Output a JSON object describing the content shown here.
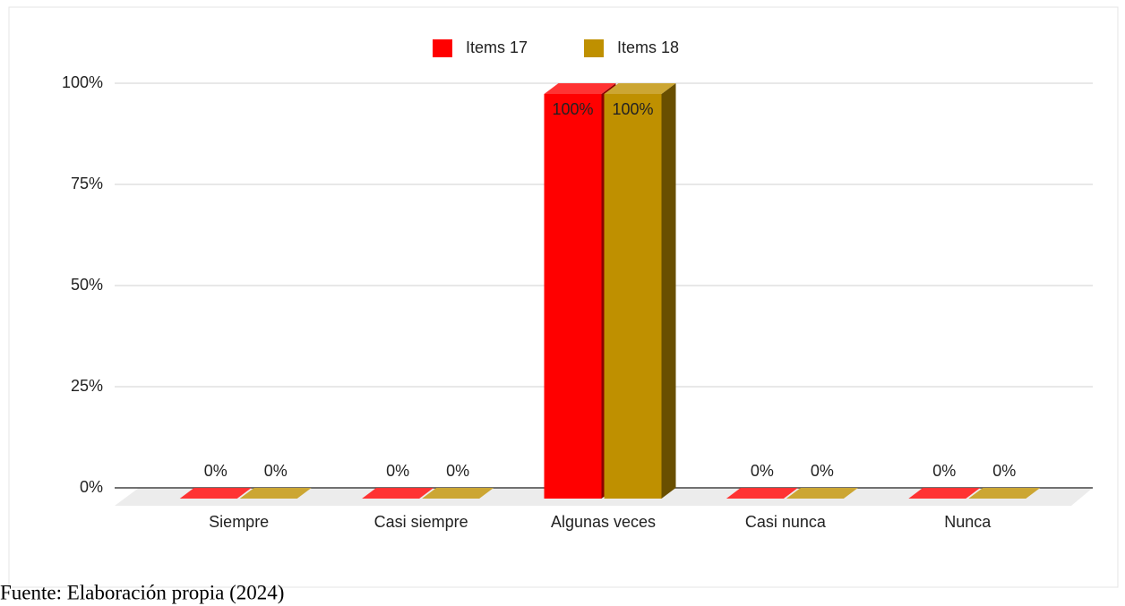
{
  "chart_data": {
    "type": "bar3d",
    "categories": [
      "Siempre",
      "Casi siempre",
      "Algunas veces",
      "Casi nunca",
      "Nunca"
    ],
    "series": [
      {
        "name": "Items 17",
        "color": "#ff0000",
        "values": [
          0,
          0,
          100,
          0,
          0
        ],
        "value_labels": [
          "0%",
          "0%",
          "100%",
          "0%",
          "0%"
        ]
      },
      {
        "name": "Items 18",
        "color": "#bf9000",
        "values": [
          0,
          0,
          100,
          0,
          0
        ],
        "value_labels": [
          "0%",
          "0%",
          "100%",
          "0%",
          "0%"
        ]
      }
    ],
    "ylim": [
      0,
      100
    ],
    "yticks": [
      {
        "value": 0,
        "label": "0%"
      },
      {
        "value": 25,
        "label": "25%"
      },
      {
        "value": 50,
        "label": "50%"
      },
      {
        "value": 75,
        "label": "75%"
      },
      {
        "value": 100,
        "label": "100%"
      }
    ],
    "grid": true,
    "legend": "top",
    "source": "Fuente: Elaboración propia (2024)"
  }
}
